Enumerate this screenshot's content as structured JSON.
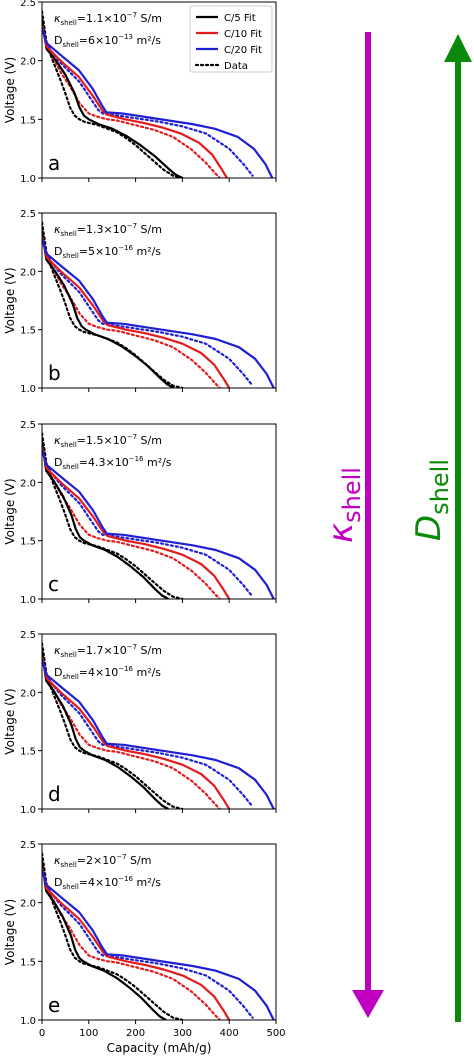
{
  "xlabel": "Capacity (mAh/g)",
  "ylabel": "Voltage (V)",
  "xlim": [
    0,
    500
  ],
  "ylim": [
    1.0,
    2.5
  ],
  "xticks": [
    "0",
    "100",
    "200",
    "300",
    "400",
    "500"
  ],
  "yticks": [
    "1.0",
    "1.5",
    "2.0",
    "2.5"
  ],
  "legend": {
    "placement": "top-right of panel a",
    "entries": [
      {
        "label": "C/5 Fit",
        "color": "#000000",
        "dash": "solid"
      },
      {
        "label": "C/10 Fit",
        "color": "#e41a1c",
        "dash": "solid"
      },
      {
        "label": "C/20 Fit",
        "color": "#1f1fd6",
        "dash": "solid"
      },
      {
        "label": "Data",
        "color": "#000000",
        "dash": "dotted"
      }
    ]
  },
  "arrows": [
    {
      "label_symbol": "κ",
      "label_sub": "shell",
      "direction": "down",
      "color": "#c000c0"
    },
    {
      "label_symbol": "D",
      "label_sub": "shell",
      "direction": "up",
      "color": "#0a8a0a"
    }
  ],
  "panels": [
    {
      "letter": "a",
      "kappa_prefix": "κ",
      "kappa_sub": "shell",
      "kappa_value": "=1.1×10",
      "kappa_exp": "−7",
      "kappa_unit": " S/m",
      "d_prefix": "D",
      "d_sub": "shell",
      "d_value": "=6×10",
      "d_exp": "−13",
      "d_unit": " m²/s",
      "fit_end": {
        "c5": 300,
        "c10": 395,
        "c20": 492
      }
    },
    {
      "letter": "b",
      "kappa_prefix": "κ",
      "kappa_sub": "shell",
      "kappa_value": "=1.3×10",
      "kappa_exp": "−7",
      "kappa_unit": " S/m",
      "d_prefix": "D",
      "d_sub": "shell",
      "d_value": "=5×10",
      "d_exp": "−16",
      "d_unit": " m²/s",
      "fit_end": {
        "c5": 282,
        "c10": 400,
        "c20": 495
      }
    },
    {
      "letter": "c",
      "kappa_prefix": "κ",
      "kappa_sub": "shell",
      "kappa_value": "=1.5×10",
      "kappa_exp": "−7",
      "kappa_unit": " S/m",
      "d_prefix": "D",
      "d_sub": "shell",
      "d_value": "=4.3×10",
      "d_exp": "−16",
      "d_unit": " m²/s",
      "fit_end": {
        "c5": 270,
        "c10": 400,
        "c20": 495
      }
    },
    {
      "letter": "d",
      "kappa_prefix": "κ",
      "kappa_sub": "shell",
      "kappa_value": "=1.7×10",
      "kappa_exp": "−7",
      "kappa_unit": " S/m",
      "d_prefix": "D",
      "d_sub": "shell",
      "d_value": "=4×10",
      "d_exp": "−16",
      "d_unit": " m²/s",
      "fit_end": {
        "c5": 270,
        "c10": 400,
        "c20": 495
      }
    },
    {
      "letter": "e",
      "kappa_prefix": "κ",
      "kappa_sub": "shell",
      "kappa_value": "=2×10",
      "kappa_exp": "−7",
      "kappa_unit": " S/m",
      "d_prefix": "D",
      "d_sub": "shell",
      "d_value": "=4×10",
      "d_exp": "−16",
      "d_unit": " m²/s",
      "fit_end": {
        "c5": 265,
        "c10": 400,
        "c20": 495
      }
    }
  ],
  "chart_data": {
    "type": "line",
    "xlabel": "Capacity (mAh/g)",
    "ylabel": "Voltage (V)",
    "xlim": [
      0,
      500
    ],
    "ylim": [
      1.0,
      2.5
    ],
    "grid": false,
    "legend_placement": "top-right (panel a only)",
    "data_series": {
      "c5_data": {
        "x": [
          0,
          10,
          20,
          30,
          40,
          50,
          60,
          70,
          80,
          90,
          100,
          120,
          140,
          160,
          180,
          200,
          220,
          240,
          260,
          280,
          290,
          300
        ],
        "y": [
          2.42,
          2.15,
          2.03,
          1.93,
          1.83,
          1.72,
          1.6,
          1.53,
          1.5,
          1.48,
          1.47,
          1.45,
          1.42,
          1.39,
          1.34,
          1.28,
          1.21,
          1.14,
          1.07,
          1.02,
          1.01,
          1.0
        ]
      },
      "c10_data": {
        "x": [
          0,
          10,
          20,
          30,
          40,
          60,
          80,
          100,
          120,
          140,
          160,
          200,
          240,
          280,
          320,
          350,
          370,
          380
        ],
        "y": [
          2.3,
          2.12,
          2.05,
          1.98,
          1.9,
          1.78,
          1.64,
          1.55,
          1.52,
          1.5,
          1.49,
          1.45,
          1.41,
          1.35,
          1.24,
          1.13,
          1.04,
          1.0
        ]
      },
      "c20_data": {
        "x": [
          0,
          10,
          20,
          40,
          60,
          80,
          100,
          120,
          130,
          150,
          200,
          250,
          300,
          350,
          400,
          430,
          450
        ],
        "y": [
          2.28,
          2.15,
          2.08,
          1.98,
          1.9,
          1.82,
          1.7,
          1.58,
          1.55,
          1.54,
          1.51,
          1.48,
          1.44,
          1.38,
          1.25,
          1.12,
          1.02
        ]
      }
    },
    "fit_shape": {
      "c5": {
        "x_frac": [
          0,
          0.033,
          0.1,
          0.167,
          0.233,
          0.267,
          0.3,
          0.333,
          0.4,
          0.5,
          0.6,
          0.7,
          0.8,
          0.9,
          0.95,
          1.0
        ],
        "y": [
          2.35,
          2.1,
          2.0,
          1.88,
          1.72,
          1.6,
          1.53,
          1.5,
          1.46,
          1.42,
          1.36,
          1.28,
          1.19,
          1.08,
          1.03,
          1.0
        ]
      },
      "c10": {
        "x_frac": [
          0,
          0.025,
          0.1,
          0.2,
          0.275,
          0.325,
          0.35,
          0.45,
          0.55,
          0.65,
          0.75,
          0.85,
          0.92,
          0.97,
          1.0
        ],
        "y": [
          2.3,
          2.12,
          2.0,
          1.86,
          1.7,
          1.58,
          1.54,
          1.5,
          1.47,
          1.43,
          1.38,
          1.3,
          1.2,
          1.08,
          1.0
        ]
      },
      "c20": {
        "x_frac": [
          0,
          0.02,
          0.08,
          0.16,
          0.22,
          0.26,
          0.28,
          0.35,
          0.45,
          0.55,
          0.65,
          0.75,
          0.85,
          0.92,
          0.97,
          1.0
        ],
        "y": [
          2.28,
          2.15,
          2.05,
          1.92,
          1.76,
          1.62,
          1.56,
          1.55,
          1.52,
          1.49,
          1.46,
          1.42,
          1.35,
          1.25,
          1.12,
          1.0
        ]
      }
    }
  }
}
